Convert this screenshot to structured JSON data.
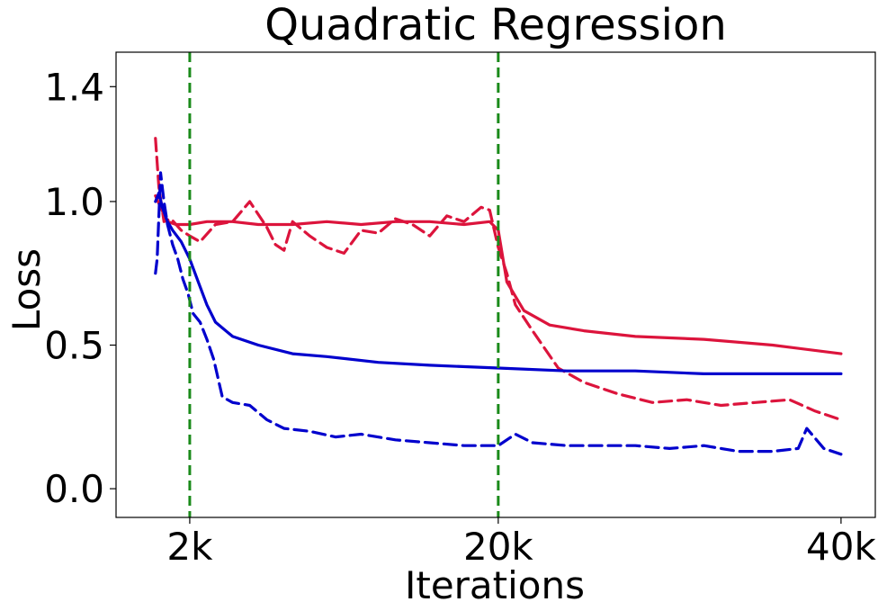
{
  "chart_data": {
    "type": "line",
    "title": "Quadratic Regression",
    "xlabel": "Iterations",
    "ylabel": "Loss",
    "x_ticks": [
      {
        "value": 2000,
        "label": "2k"
      },
      {
        "value": 20000,
        "label": "20k"
      },
      {
        "value": 40000,
        "label": "40k"
      }
    ],
    "y_ticks": [
      {
        "value": 0.0,
        "label": "0.0"
      },
      {
        "value": 0.5,
        "label": "0.5"
      },
      {
        "value": 1.0,
        "label": "1.0"
      },
      {
        "value": 1.4,
        "label": "1.4"
      }
    ],
    "xlim": [
      -2300,
      42000
    ],
    "ylim": [
      -0.1,
      1.52
    ],
    "grid": false,
    "vertical_lines": [
      {
        "x": 2000,
        "color": "#1a8a1a",
        "style": "dashed"
      },
      {
        "x": 20000,
        "color": "#1a8a1a",
        "style": "dashed"
      }
    ],
    "series": [
      {
        "color": "#dc143c",
        "style": "solid",
        "x": [
          0,
          300,
          700,
          1200,
          2000,
          3000,
          4500,
          6000,
          8000,
          10000,
          12000,
          14000,
          16000,
          18000,
          19500,
          20000,
          20500,
          21500,
          23000,
          25000,
          28000,
          32000,
          36000,
          40000
        ],
        "y": [
          1.02,
          0.98,
          0.93,
          0.92,
          0.92,
          0.93,
          0.93,
          0.92,
          0.92,
          0.93,
          0.92,
          0.93,
          0.93,
          0.92,
          0.93,
          0.9,
          0.72,
          0.62,
          0.57,
          0.55,
          0.53,
          0.52,
          0.5,
          0.47
        ]
      },
      {
        "color": "#dc143c",
        "style": "dashed",
        "x": [
          0,
          200,
          500,
          900,
          1500,
          2000,
          2600,
          3500,
          4500,
          5500,
          6500,
          7000,
          7500,
          8000,
          9000,
          10000,
          11000,
          12000,
          13000,
          14000,
          15000,
          16000,
          17000,
          18000,
          19000,
          19500,
          20000,
          20500,
          21000,
          22000,
          23500,
          25000,
          27000,
          29000,
          31000,
          33000,
          35000,
          37000,
          38500,
          40000
        ],
        "y": [
          1.22,
          1.05,
          0.93,
          0.94,
          0.9,
          0.88,
          0.86,
          0.92,
          0.93,
          1.0,
          0.91,
          0.85,
          0.83,
          0.93,
          0.88,
          0.84,
          0.82,
          0.9,
          0.89,
          0.94,
          0.92,
          0.88,
          0.95,
          0.93,
          0.98,
          0.97,
          0.84,
          0.75,
          0.64,
          0.55,
          0.42,
          0.37,
          0.33,
          0.3,
          0.31,
          0.29,
          0.3,
          0.31,
          0.27,
          0.24
        ]
      },
      {
        "color": "#0000cd",
        "style": "solid",
        "x": [
          0,
          200,
          400,
          700,
          1000,
          1500,
          2000,
          2500,
          3000,
          3500,
          4500,
          6000,
          8000,
          10000,
          13000,
          16000,
          20000,
          24000,
          28000,
          32000,
          36000,
          40000
        ],
        "y": [
          1.0,
          1.03,
          0.98,
          0.93,
          0.9,
          0.86,
          0.8,
          0.72,
          0.64,
          0.58,
          0.53,
          0.5,
          0.47,
          0.46,
          0.44,
          0.43,
          0.42,
          0.41,
          0.41,
          0.4,
          0.4,
          0.4
        ]
      },
      {
        "color": "#0000cd",
        "style": "dashed",
        "x": [
          0,
          100,
          300,
          500,
          700,
          1000,
          1300,
          1600,
          1900,
          2200,
          2600,
          3000,
          3400,
          3900,
          4500,
          5500,
          6500,
          7500,
          9000,
          10500,
          12000,
          14000,
          16000,
          18000,
          20000,
          21000,
          22000,
          24000,
          26000,
          28000,
          30000,
          32000,
          34000,
          36000,
          37500,
          38000,
          39000,
          40000
        ],
        "y": [
          0.75,
          0.8,
          1.1,
          1.0,
          0.92,
          0.85,
          0.8,
          0.73,
          0.68,
          0.61,
          0.58,
          0.52,
          0.45,
          0.32,
          0.3,
          0.29,
          0.24,
          0.21,
          0.2,
          0.18,
          0.19,
          0.17,
          0.16,
          0.15,
          0.15,
          0.19,
          0.16,
          0.15,
          0.15,
          0.15,
          0.14,
          0.15,
          0.13,
          0.13,
          0.14,
          0.21,
          0.14,
          0.12
        ]
      }
    ]
  }
}
